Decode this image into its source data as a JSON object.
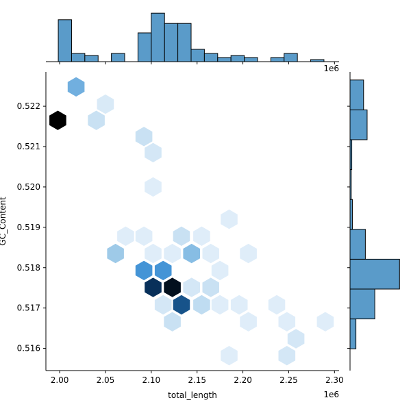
{
  "chart_data": {
    "type": "hexbin-jointplot",
    "xlabel": "total_length",
    "ylabel": "GC_Content",
    "x_offset_label": "1e6",
    "top_offset_label": "1e6",
    "xlim": [
      1.985,
      2.305
    ],
    "ylim": [
      0.51545,
      0.52285
    ],
    "x_ticks": [
      2.0,
      2.05,
      2.1,
      2.15,
      2.2,
      2.25,
      2.3
    ],
    "x_tick_labels": [
      "2.00",
      "2.05",
      "2.10",
      "2.15",
      "2.20",
      "2.25",
      "2.30"
    ],
    "y_ticks": [
      0.516,
      0.517,
      0.518,
      0.519,
      0.52,
      0.521,
      0.522
    ],
    "y_tick_labels": [
      "0.516",
      "0.517",
      "0.518",
      "0.519",
      "0.520",
      "0.521",
      "0.522"
    ],
    "colors": {
      "bar": "#5a9bc9",
      "edge": "#000000",
      "cmap_low": "#eaf3fc",
      "cmap_high": "#000000"
    },
    "hexbins": [
      {
        "x": 2.018,
        "y": 0.52248,
        "level": 0.45
      },
      {
        "x": 2.05,
        "y": 0.52205,
        "level": 0.08
      },
      {
        "x": 1.998,
        "y": 0.52165,
        "level": 1.0
      },
      {
        "x": 2.04,
        "y": 0.52165,
        "level": 0.15
      },
      {
        "x": 2.092,
        "y": 0.52125,
        "level": 0.15
      },
      {
        "x": 2.102,
        "y": 0.52085,
        "level": 0.1
      },
      {
        "x": 2.102,
        "y": 0.52,
        "level": 0.05
      },
      {
        "x": 2.185,
        "y": 0.5192,
        "level": 0.05
      },
      {
        "x": 2.072,
        "y": 0.51878,
        "level": 0.05
      },
      {
        "x": 2.092,
        "y": 0.51878,
        "level": 0.05
      },
      {
        "x": 2.133,
        "y": 0.51878,
        "level": 0.15
      },
      {
        "x": 2.155,
        "y": 0.51878,
        "level": 0.05
      },
      {
        "x": 2.061,
        "y": 0.51835,
        "level": 0.35
      },
      {
        "x": 2.102,
        "y": 0.51835,
        "level": 0.05
      },
      {
        "x": 2.123,
        "y": 0.51835,
        "level": 0.05
      },
      {
        "x": 2.144,
        "y": 0.51835,
        "level": 0.4
      },
      {
        "x": 2.165,
        "y": 0.51835,
        "level": 0.05
      },
      {
        "x": 2.206,
        "y": 0.51835,
        "level": 0.05
      },
      {
        "x": 2.092,
        "y": 0.51793,
        "level": 0.55
      },
      {
        "x": 2.113,
        "y": 0.51793,
        "level": 0.55
      },
      {
        "x": 2.175,
        "y": 0.51793,
        "level": 0.05
      },
      {
        "x": 2.102,
        "y": 0.51751,
        "level": 0.85
      },
      {
        "x": 2.123,
        "y": 0.51751,
        "level": 0.95
      },
      {
        "x": 2.144,
        "y": 0.51751,
        "level": 0.1
      },
      {
        "x": 2.165,
        "y": 0.51751,
        "level": 0.15
      },
      {
        "x": 2.113,
        "y": 0.51708,
        "level": 0.1
      },
      {
        "x": 2.133,
        "y": 0.51708,
        "level": 0.75
      },
      {
        "x": 2.155,
        "y": 0.51708,
        "level": 0.2
      },
      {
        "x": 2.175,
        "y": 0.51708,
        "level": 0.05
      },
      {
        "x": 2.196,
        "y": 0.51708,
        "level": 0.05
      },
      {
        "x": 2.237,
        "y": 0.51708,
        "level": 0.05
      },
      {
        "x": 2.123,
        "y": 0.51666,
        "level": 0.15
      },
      {
        "x": 2.206,
        "y": 0.51666,
        "level": 0.05
      },
      {
        "x": 2.248,
        "y": 0.51666,
        "level": 0.05
      },
      {
        "x": 2.29,
        "y": 0.51666,
        "level": 0.05
      },
      {
        "x": 2.258,
        "y": 0.51624,
        "level": 0.1
      },
      {
        "x": 2.185,
        "y": 0.51582,
        "level": 0.05
      },
      {
        "x": 2.248,
        "y": 0.51582,
        "level": 0.1
      }
    ],
    "x_hist": {
      "bins": [
        1.9985,
        2.013,
        2.0275,
        2.042,
        2.0565,
        2.071,
        2.0855,
        2.1,
        2.1145,
        2.129,
        2.1435,
        2.158,
        2.1725,
        2.187,
        2.2015,
        2.216,
        2.2305,
        2.245,
        2.2595,
        2.274,
        2.2885,
        2.303
      ],
      "counts": [
        10.2,
        2.0,
        1.5,
        0,
        2.0,
        0,
        7.0,
        11.8,
        9.3,
        9.3,
        3.0,
        2.0,
        1.0,
        1.5,
        1.0,
        0,
        1.0,
        2.0,
        0,
        0.5,
        0
      ],
      "ymax": 12.5
    },
    "y_hist": {
      "bins": [
        0.51599,
        0.51673,
        0.51747,
        0.51821,
        0.51895,
        0.51969,
        0.52043,
        0.52117,
        0.52191,
        0.52265
      ],
      "counts": [
        1.0,
        4.2,
        8.4,
        2.6,
        0.4,
        0.2,
        0.3,
        2.9,
        2.3
      ],
      "xmax": 8.6
    }
  }
}
